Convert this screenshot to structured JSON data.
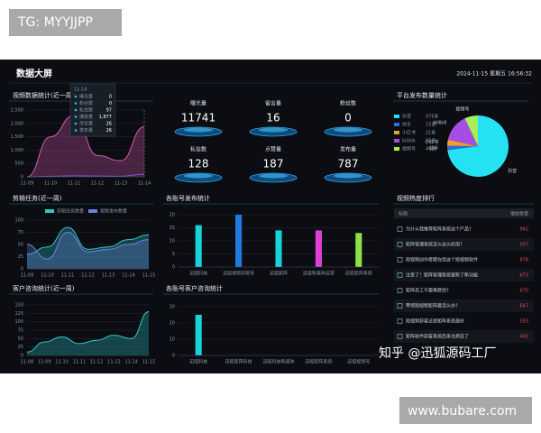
{
  "watermarks": {
    "top_left": "TG: MYYJJPP",
    "bottom_right": "www.bubare.com",
    "overlay": "知乎 @迅狐源码工厂"
  },
  "header": {
    "title": "数据大屏",
    "datetime": "2024-11-15 星期五 16:56:32"
  },
  "stats": {
    "title": "",
    "items": [
      {
        "label": "曝光量",
        "value": "11741"
      },
      {
        "label": "留言量",
        "value": "16"
      },
      {
        "label": "粉丝数",
        "value": "0"
      },
      {
        "label": "私信数",
        "value": "128"
      },
      {
        "label": "点赞量",
        "value": "187"
      },
      {
        "label": "发布量",
        "value": "787"
      }
    ]
  },
  "ranking": {
    "title": "视频热度排行",
    "columns": [
      "标题",
      "播放数量"
    ],
    "rows": [
      [
        "为什么我推荐矩阵系统这个产品？",
        "982"
      ],
      [
        "矩阵管理系统怎么这么好用？",
        "937"
      ],
      [
        "短视频创作者都在用这个短视频软件",
        "878"
      ],
      [
        "注意了！矩阵管理系统更新了新功能",
        "673"
      ],
      [
        "矩阵员工不要再费劲？",
        "670"
      ],
      [
        "带领短视频矩阵要怎么办？",
        "647"
      ],
      [
        "短视频获客还是矩阵系统最好",
        "593"
      ],
      [
        "矩阵软件获客系统后来也疯狂了",
        "491"
      ]
    ]
  },
  "chart_data": [
    {
      "type": "line",
      "title": "视频数据统计(近一周)",
      "categories": [
        "11-09",
        "11-10",
        "11-11",
        "11-12",
        "11-13",
        "11-14"
      ],
      "ylim": [
        0,
        2500
      ],
      "yticks": [
        0,
        500,
        {
          "value": 1000,
          "label": "1,000"
        },
        {
          "value": 1500,
          "label": "1,500"
        },
        {
          "value": 2000,
          "label": "2,000"
        },
        {
          "value": 2500,
          "label": "2,500"
        }
      ],
      "grid": true,
      "series": [
        {
          "color": "#d65bb4",
          "area": true,
          "values": [
            0,
            1500,
            2300,
            800,
            600,
            1877
          ]
        },
        {
          "color": "#7b5bd6",
          "area": false,
          "values": [
            0,
            20,
            40,
            30,
            20,
            97
          ]
        }
      ],
      "tooltip": {
        "title": "11-14",
        "rows": [
          [
            "曝光量",
            "0"
          ],
          [
            "粉丝数",
            "0"
          ],
          [
            "私信数",
            "97"
          ],
          [
            "播放量",
            "1,877"
          ],
          [
            "评论量",
            "26"
          ],
          [
            "发布量",
            "26"
          ]
        ]
      }
    },
    {
      "type": "line",
      "title": "剪辑任务(近一周)",
      "categories": [
        "11-09",
        "11-10",
        "11-11",
        "11-12",
        "11-13",
        "11-14",
        "11-15"
      ],
      "ylim": [
        0,
        100
      ],
      "yticks": [
        0,
        25,
        50,
        75,
        100
      ],
      "grid": true,
      "series": [
        {
          "name": "剪辑任务数量",
          "color": "#2fc7c9",
          "area": true,
          "values": [
            30,
            45,
            85,
            40,
            45,
            60,
            70
          ]
        },
        {
          "name": "视频发布数量",
          "color": "#6f7fe0",
          "area": true,
          "values": [
            50,
            20,
            75,
            35,
            40,
            50,
            60
          ]
        }
      ]
    },
    {
      "type": "bar",
      "title": "各账号发布统计",
      "categories": [
        "迅狐科技",
        "迅狐视频剪辑号",
        "迅狐矩阵",
        "迅狐新媒体运营",
        "迅狐矩阵系统"
      ],
      "ylim": [
        0,
        20
      ],
      "yticks": [
        0,
        5,
        10,
        15,
        20
      ],
      "grid": true,
      "values": [
        16,
        20,
        14,
        14,
        13
      ],
      "colors": [
        "#19d3da",
        "#1f7ae0",
        "#19d3da",
        "#e040d8",
        "#8ee04a"
      ]
    },
    {
      "type": "pie",
      "title": "平台发布数量统计",
      "categories": [
        "抖音",
        "快手",
        "小红书",
        "bilibili",
        "视频号"
      ],
      "values": [
        476,
        15,
        21,
        95,
        46
      ],
      "value_labels": [
        "476条",
        "15条",
        "21条",
        "95条",
        "46条"
      ],
      "colors": [
        "#25e2f2",
        "#2f6be0",
        "#f0a030",
        "#a64de6",
        "#a6ee5a"
      ]
    },
    {
      "type": "line",
      "title": "客户咨询统计(近一周)",
      "categories": [
        "11-08",
        "11-09",
        "11-10",
        "11-11",
        "11-12",
        "11-13",
        "11-14",
        "11-15"
      ],
      "ylim": [
        0,
        150
      ],
      "yticks": [
        0,
        25,
        50,
        75,
        100,
        125,
        150
      ],
      "grid": true,
      "series": [
        {
          "color": "#2fc7c9",
          "area": true,
          "values": [
            10,
            40,
            55,
            35,
            45,
            60,
            50,
            130
          ]
        }
      ]
    },
    {
      "type": "bar",
      "title": "各账号客户咨询统计",
      "categories": [
        "迅狐科技",
        "迅狐矩阵科技",
        "迅狐科技新媒体",
        "迅狐矩阵系统",
        "迅狐视频号"
      ],
      "ylim": [
        0,
        30
      ],
      "yticks": [
        0,
        10,
        20,
        30
      ],
      "grid": true,
      "values": [
        25,
        0,
        0,
        0,
        0
      ],
      "colors": [
        "#19d3da",
        "#19d3da",
        "#19d3da",
        "#19d3da",
        "#19d3da"
      ]
    }
  ]
}
